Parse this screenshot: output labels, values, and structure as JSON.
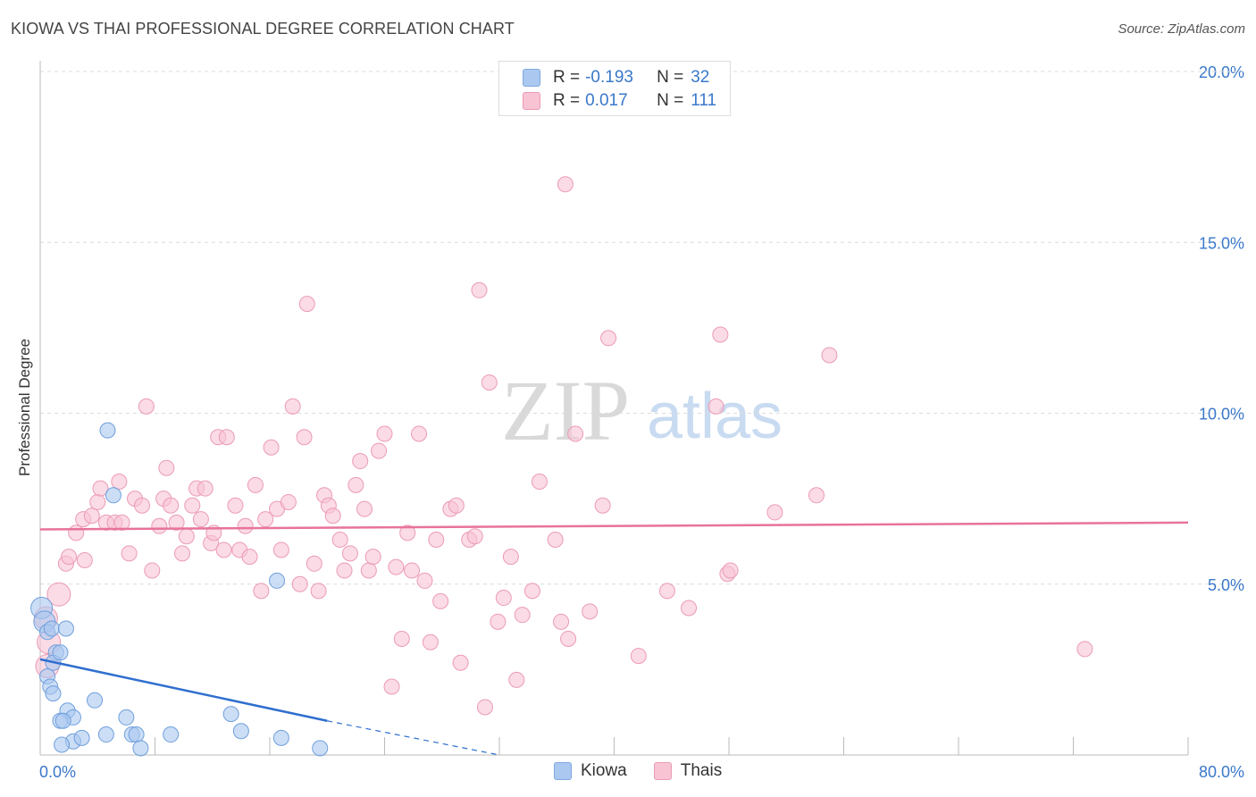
{
  "title": "KIOWA VS THAI PROFESSIONAL DEGREE CORRELATION CHART",
  "source": "Source: ZipAtlas.com",
  "watermark": {
    "zip": "ZIP",
    "atlas": "atlas"
  },
  "legend": {
    "rows": [
      {
        "r_label": "R =",
        "r_value": "-0.193",
        "n_label": "N =",
        "n_value": "32",
        "color": "#aac8f0",
        "border": "#7fa9df"
      },
      {
        "r_label": "R =",
        "r_value": "0.017",
        "n_label": "N =",
        "n_value": "111",
        "color": "#f8c3d3",
        "border": "#eb9bb6"
      }
    ]
  },
  "chart_data": {
    "type": "scatter",
    "title": "KIOWA VS THAI PROFESSIONAL DEGREE CORRELATION CHART",
    "xlabel": "",
    "ylabel": "Professional Degree",
    "xlim": [
      0,
      80
    ],
    "ylim": [
      0,
      20
    ],
    "x_tick_labels": [
      "0.0%",
      "80.0%"
    ],
    "y_ticks": [
      5,
      10,
      15,
      20
    ],
    "y_tick_labels": [
      "5.0%",
      "10.0%",
      "15.0%",
      "20.0%"
    ],
    "grid": true,
    "legend_position": "top-center",
    "series": [
      {
        "name": "Kiowa",
        "color": "#aac8f0",
        "stroke": "#6f9fdc",
        "trend": {
          "x": [
            0,
            20
          ],
          "y": [
            2.8,
            1.0
          ],
          "extended_to": [
            32,
            0.0
          ],
          "color": "#2f6fcf"
        },
        "points": [
          [
            0.1,
            4.3
          ],
          [
            0.3,
            3.9
          ],
          [
            0.5,
            3.6
          ],
          [
            0.8,
            3.7
          ],
          [
            1.1,
            3.0
          ],
          [
            0.9,
            2.7
          ],
          [
            0.5,
            2.3
          ],
          [
            0.7,
            2.0
          ],
          [
            0.9,
            1.8
          ],
          [
            1.4,
            3.0
          ],
          [
            1.8,
            3.7
          ],
          [
            1.9,
            1.3
          ],
          [
            2.3,
            1.1
          ],
          [
            1.4,
            1.0
          ],
          [
            1.6,
            1.0
          ],
          [
            2.3,
            0.4
          ],
          [
            2.9,
            0.5
          ],
          [
            1.5,
            0.3
          ],
          [
            3.8,
            1.6
          ],
          [
            4.7,
            9.5
          ],
          [
            5.1,
            7.6
          ],
          [
            4.6,
            0.6
          ],
          [
            6.0,
            1.1
          ],
          [
            6.4,
            0.6
          ],
          [
            6.7,
            0.6
          ],
          [
            7.0,
            0.2
          ],
          [
            9.1,
            0.6
          ],
          [
            13.3,
            1.2
          ],
          [
            14.0,
            0.7
          ],
          [
            16.5,
            5.1
          ],
          [
            16.8,
            0.5
          ],
          [
            19.5,
            0.2
          ]
        ]
      },
      {
        "name": "Thais",
        "color": "#f8c3d3",
        "stroke": "#eb9bb6",
        "trend": {
          "x": [
            0,
            80
          ],
          "y": [
            6.6,
            6.8
          ],
          "color": "#e8739a"
        },
        "points": [
          [
            0.4,
            4.0
          ],
          [
            0.6,
            3.3
          ],
          [
            0.5,
            2.6
          ],
          [
            1.3,
            4.7
          ],
          [
            1.8,
            5.6
          ],
          [
            2.0,
            5.8
          ],
          [
            2.5,
            6.5
          ],
          [
            3.0,
            6.9
          ],
          [
            3.6,
            7.0
          ],
          [
            3.1,
            5.7
          ],
          [
            4.0,
            7.4
          ],
          [
            4.2,
            7.8
          ],
          [
            4.6,
            6.8
          ],
          [
            5.2,
            6.8
          ],
          [
            5.5,
            8.0
          ],
          [
            5.7,
            6.8
          ],
          [
            6.2,
            5.9
          ],
          [
            6.6,
            7.5
          ],
          [
            7.1,
            7.3
          ],
          [
            7.4,
            10.2
          ],
          [
            7.8,
            5.4
          ],
          [
            8.3,
            6.7
          ],
          [
            8.6,
            7.5
          ],
          [
            8.8,
            8.4
          ],
          [
            9.1,
            7.3
          ],
          [
            9.5,
            6.8
          ],
          [
            9.9,
            5.9
          ],
          [
            10.2,
            6.4
          ],
          [
            10.6,
            7.3
          ],
          [
            10.9,
            7.8
          ],
          [
            11.2,
            6.9
          ],
          [
            11.5,
            7.8
          ],
          [
            11.9,
            6.2
          ],
          [
            12.1,
            6.5
          ],
          [
            12.4,
            9.3
          ],
          [
            12.8,
            6.0
          ],
          [
            13.0,
            9.3
          ],
          [
            13.6,
            7.3
          ],
          [
            13.9,
            6.0
          ],
          [
            14.3,
            6.7
          ],
          [
            14.6,
            5.8
          ],
          [
            15.0,
            7.9
          ],
          [
            15.4,
            4.8
          ],
          [
            15.7,
            6.9
          ],
          [
            16.1,
            9.0
          ],
          [
            16.5,
            7.2
          ],
          [
            16.8,
            6.0
          ],
          [
            17.3,
            7.4
          ],
          [
            17.6,
            10.2
          ],
          [
            18.1,
            5.0
          ],
          [
            18.4,
            9.3
          ],
          [
            18.6,
            13.2
          ],
          [
            19.1,
            5.6
          ],
          [
            19.4,
            4.8
          ],
          [
            19.8,
            7.6
          ],
          [
            20.1,
            7.3
          ],
          [
            20.4,
            7.0
          ],
          [
            20.9,
            6.3
          ],
          [
            21.2,
            5.4
          ],
          [
            21.6,
            5.9
          ],
          [
            22.0,
            7.9
          ],
          [
            22.3,
            8.6
          ],
          [
            22.6,
            7.2
          ],
          [
            22.9,
            5.4
          ],
          [
            23.2,
            5.8
          ],
          [
            23.6,
            8.9
          ],
          [
            24.0,
            9.4
          ],
          [
            24.5,
            2.0
          ],
          [
            24.8,
            5.5
          ],
          [
            25.2,
            3.4
          ],
          [
            25.6,
            6.5
          ],
          [
            25.9,
            5.4
          ],
          [
            26.4,
            9.4
          ],
          [
            26.8,
            5.1
          ],
          [
            27.2,
            3.3
          ],
          [
            27.6,
            6.3
          ],
          [
            27.9,
            4.5
          ],
          [
            28.6,
            7.2
          ],
          [
            29.0,
            7.3
          ],
          [
            29.3,
            2.7
          ],
          [
            29.9,
            6.3
          ],
          [
            30.3,
            6.4
          ],
          [
            30.6,
            13.6
          ],
          [
            31.0,
            1.4
          ],
          [
            31.3,
            10.9
          ],
          [
            31.9,
            3.9
          ],
          [
            32.3,
            4.6
          ],
          [
            32.8,
            5.8
          ],
          [
            33.2,
            2.2
          ],
          [
            33.6,
            4.1
          ],
          [
            34.3,
            4.8
          ],
          [
            34.8,
            8.0
          ],
          [
            35.9,
            6.3
          ],
          [
            36.3,
            3.9
          ],
          [
            36.8,
            3.4
          ],
          [
            36.6,
            16.7
          ],
          [
            37.3,
            9.4
          ],
          [
            38.3,
            4.2
          ],
          [
            39.2,
            7.3
          ],
          [
            39.6,
            12.2
          ],
          [
            41.7,
            2.9
          ],
          [
            43.7,
            4.8
          ],
          [
            45.2,
            4.3
          ],
          [
            47.4,
            12.3
          ],
          [
            47.1,
            10.2
          ],
          [
            47.9,
            5.3
          ],
          [
            48.1,
            5.4
          ],
          [
            51.2,
            7.1
          ],
          [
            54.1,
            7.6
          ],
          [
            55.0,
            11.7
          ],
          [
            72.8,
            3.1
          ]
        ]
      }
    ]
  }
}
